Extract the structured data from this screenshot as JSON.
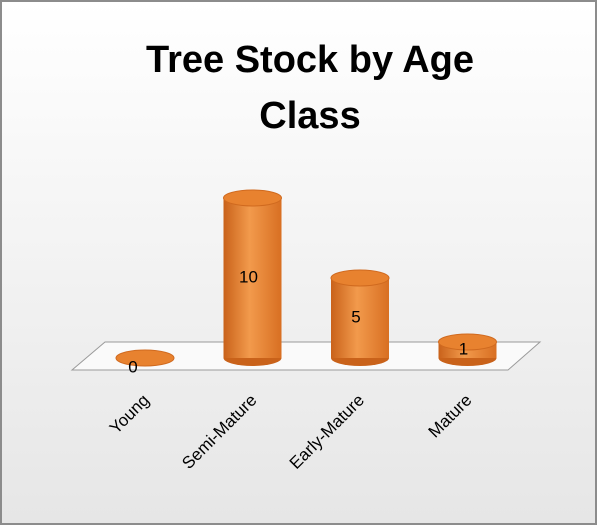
{
  "chart_data": {
    "type": "bar",
    "title": "Tree Stock by Age Class",
    "categories": [
      "Young",
      "Semi-Mature",
      "Early-Mature",
      "Mature"
    ],
    "values": [
      0,
      10,
      5,
      1
    ],
    "color": "#e8822f"
  }
}
